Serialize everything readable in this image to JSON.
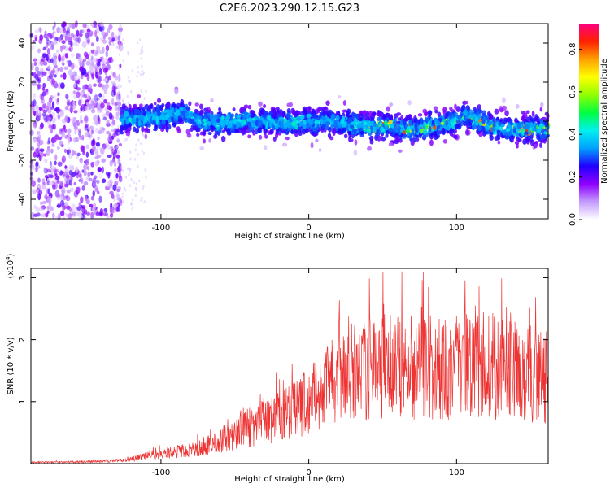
{
  "title": "C2E6.2023.290.12.15.G23",
  "chart_data": [
    {
      "type": "heatmap",
      "xlabel": "Height of straight line (km)",
      "ylabel": "Frequency (Hz)",
      "xlim": [
        -188,
        162
      ],
      "ylim": [
        -50,
        50
      ],
      "xticks": [
        -100,
        0,
        100
      ],
      "yticks": [
        -40,
        -20,
        0,
        20,
        40
      ],
      "colorbar": {
        "label": "Normalized spectral amplitude",
        "range": [
          0,
          0.92
        ],
        "ticks": [
          "0.0",
          "0.2",
          "0.4",
          "0.6",
          "0.8"
        ],
        "colors": [
          "#ffffff",
          "#c49bff",
          "#8f00ff",
          "#2000ff",
          "#00a0ff",
          "#00f0f0",
          "#00ff40",
          "#90ff00",
          "#ffff00",
          "#ffa000",
          "#ff2000",
          "#ff0080"
        ]
      },
      "signal": {
        "noise_region_x": [
          -188,
          -127
        ],
        "band_center_hz": [
          [
            -125,
            1
          ],
          [
            -100,
            2
          ],
          [
            -85,
            5
          ],
          [
            -75,
            0
          ],
          [
            -60,
            -1
          ],
          [
            -45,
            0
          ],
          [
            -30,
            0
          ],
          [
            -15,
            -1
          ],
          [
            0,
            0
          ],
          [
            15,
            0
          ],
          [
            30,
            -2
          ],
          [
            45,
            -3
          ],
          [
            55,
            -2
          ],
          [
            65,
            -4
          ],
          [
            80,
            -3
          ],
          [
            92,
            -1
          ],
          [
            100,
            0
          ],
          [
            105,
            3
          ],
          [
            112,
            1
          ],
          [
            125,
            -3
          ],
          [
            140,
            -4
          ],
          [
            162,
            -4
          ]
        ],
        "band_halfwidth_hz": 8
      }
    },
    {
      "type": "line",
      "xlabel": "Height of straight line (km)",
      "ylabel": "SNR (10 * v/v)",
      "yscale_label": "(x10",
      "yscale_exp": "4",
      "yscale_close": ")",
      "xlim": [
        -188,
        162
      ],
      "ylim": [
        0,
        3.15
      ],
      "xticks": [
        -100,
        0,
        100
      ],
      "yticks": [
        1,
        2,
        3
      ],
      "color": "#ee3333",
      "envelope": [
        [
          -188,
          0.02
        ],
        [
          -150,
          0.03
        ],
        [
          -125,
          0.05
        ],
        [
          -110,
          0.12
        ],
        [
          -95,
          0.18
        ],
        [
          -80,
          0.22
        ],
        [
          -65,
          0.32
        ],
        [
          -55,
          0.42
        ],
        [
          -45,
          0.55
        ],
        [
          -35,
          0.62
        ],
        [
          -25,
          0.72
        ],
        [
          -15,
          0.82
        ],
        [
          -5,
          0.95
        ],
        [
          5,
          1.12
        ],
        [
          15,
          1.3
        ],
        [
          25,
          1.45
        ],
        [
          40,
          1.55
        ],
        [
          60,
          1.6
        ],
        [
          80,
          1.55
        ],
        [
          100,
          1.55
        ],
        [
          120,
          1.6
        ],
        [
          140,
          1.5
        ],
        [
          162,
          1.4
        ]
      ],
      "noise_scale": 0.55,
      "peak_max": 3.1
    }
  ]
}
